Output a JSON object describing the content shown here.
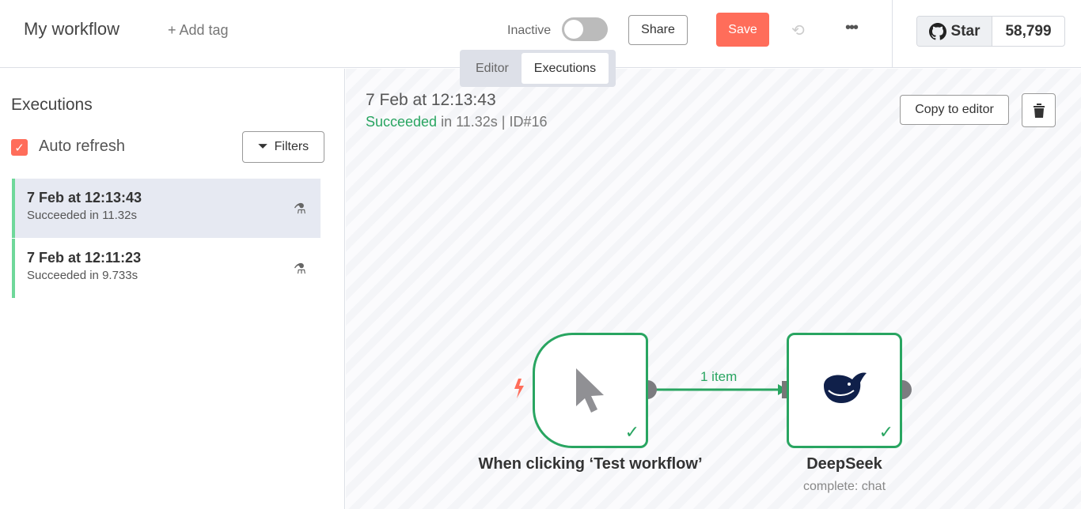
{
  "header": {
    "title": "My workflow",
    "add_tag": "+ Add tag",
    "status": "Inactive",
    "share": "Share",
    "save": "Save",
    "more": "•••",
    "github": {
      "star": "Star",
      "count": "58,799"
    }
  },
  "tabs": [
    {
      "label": "Editor"
    },
    {
      "label": "Executions",
      "active": true
    }
  ],
  "sidebar": {
    "title": "Executions",
    "auto_refresh": "Auto refresh",
    "auto_refresh_checked": true,
    "filters": "Filters",
    "items": [
      {
        "date": "7 Feb at 12:13:43",
        "status": "Succeeded in 11.32s",
        "selected": true
      },
      {
        "date": "7 Feb at 12:11:23",
        "status": "Succeeded in 9.733s"
      }
    ]
  },
  "canvas": {
    "date": "7 Feb at 12:13:43",
    "status": "Succeeded",
    "detail": " in 11.32s | ID#16",
    "copy": "Copy to editor",
    "nodes": [
      {
        "name": "When clicking ‘Test workflow’"
      },
      {
        "name": "DeepSeek",
        "subtitle": "complete: chat"
      }
    ],
    "edge_label": "1 item"
  },
  "colors": {
    "accent": "#ff6d5a",
    "success": "#29a561"
  }
}
